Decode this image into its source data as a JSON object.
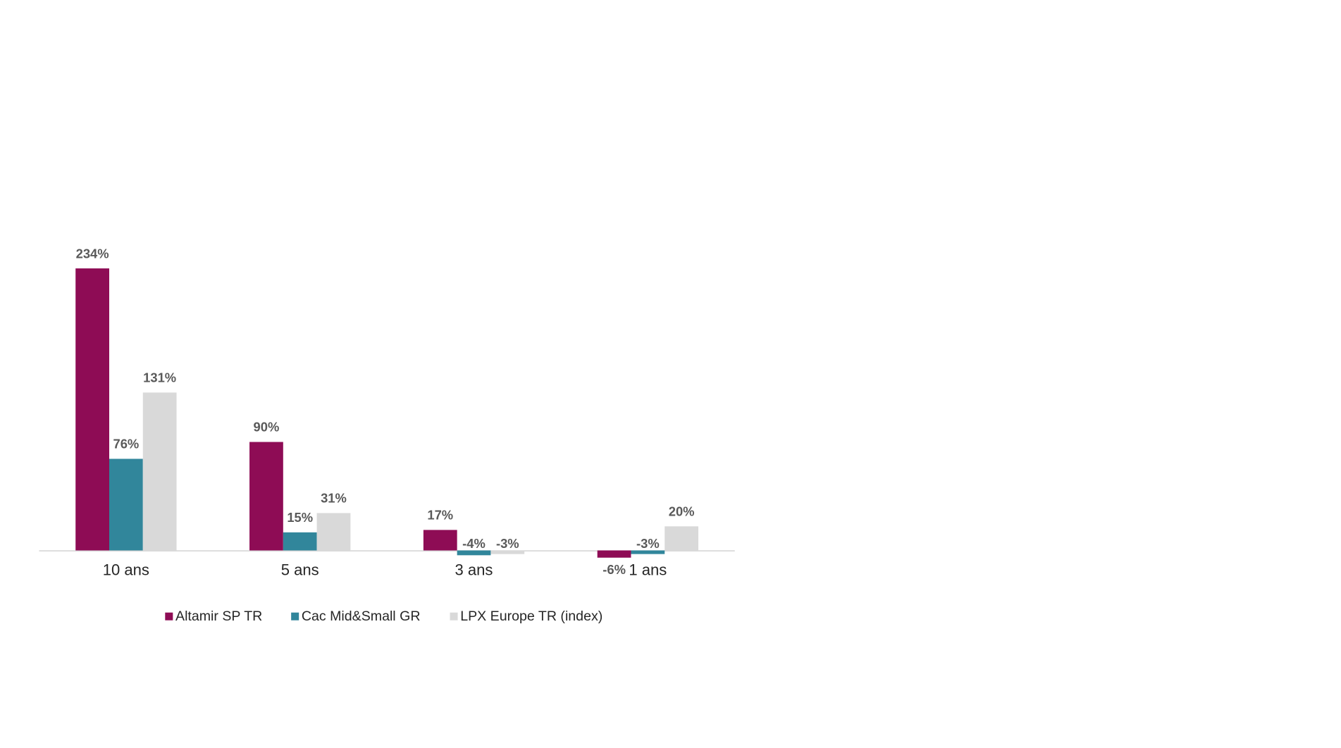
{
  "chart_data": {
    "type": "bar",
    "categories": [
      "10 ans",
      "5 ans",
      "3 ans",
      "1 ans"
    ],
    "series": [
      {
        "name": "Altamir SP TR",
        "color": "#8e0c55",
        "values": [
          234,
          90,
          17,
          -6
        ],
        "value_labels": [
          "234%",
          "90%",
          "17%",
          "-6%"
        ]
      },
      {
        "name": "Cac Mid&Small GR",
        "color": "#31869b",
        "values": [
          76,
          15,
          -4,
          -3
        ],
        "value_labels": [
          "76%",
          "15%",
          "-4%",
          "-3%"
        ]
      },
      {
        "name": "LPX Europe TR (index)",
        "color": "#d9d9d9",
        "values": [
          131,
          31,
          -3,
          20
        ],
        "value_labels": [
          "131%",
          "31%",
          "-3%",
          "20%"
        ]
      }
    ],
    "legend": "bottom"
  }
}
